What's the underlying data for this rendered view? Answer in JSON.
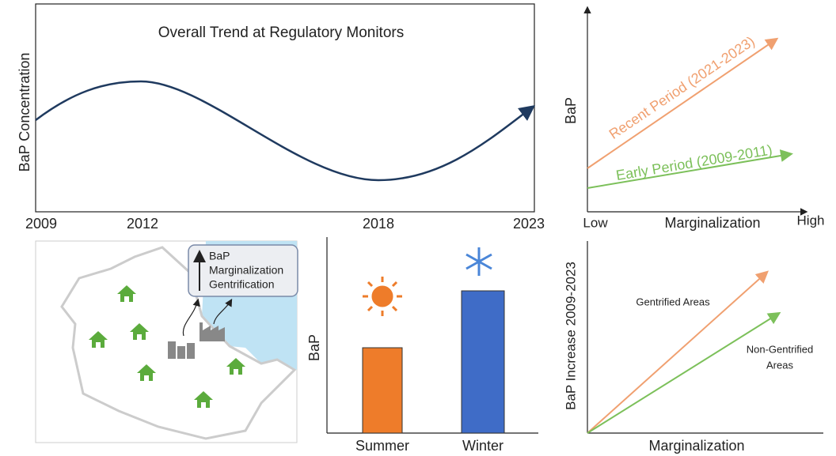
{
  "trend": {
    "title": "Overall Trend at Regulatory Monitors",
    "y_label": "BaP Concentration",
    "x_labels": [
      "2009",
      "2012",
      "2018",
      "2023"
    ]
  },
  "periods": {
    "y_label": "BaP",
    "recent": "Recent Period (2021-2023)",
    "early": "Early Period (2009-2011)",
    "x_low": "Low",
    "x_label": "Marginalization",
    "x_high": "High"
  },
  "map": {
    "callout": [
      "BaP",
      "Marginalization",
      "Gentrification"
    ]
  },
  "seasons": {
    "y_label": "BaP",
    "categories": [
      "Summer",
      "Winter"
    ]
  },
  "gentrification": {
    "y_label": "BaP Increase 2009-2023",
    "gentrified": "Gentrified Areas",
    "non_gentrified": [
      "Non-Gentrified",
      "Areas"
    ],
    "x_label": "Marginalization"
  }
}
